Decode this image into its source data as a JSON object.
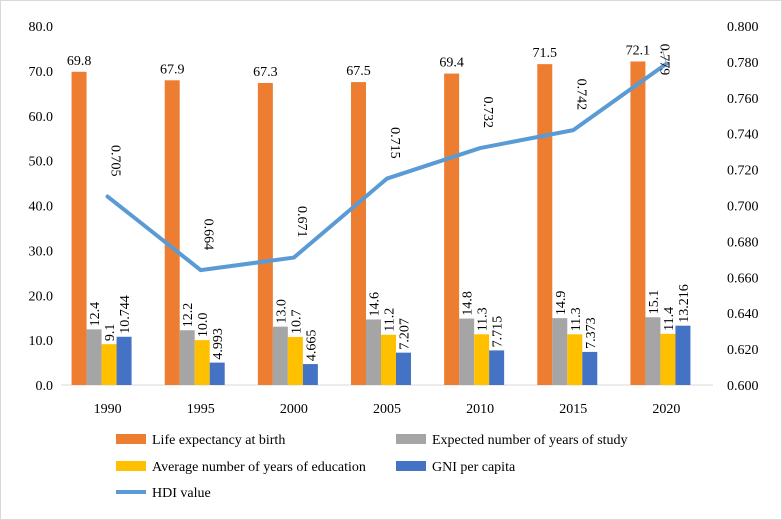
{
  "chart_data": {
    "type": "bar",
    "categories": [
      "1990",
      "1995",
      "2000",
      "2005",
      "2010",
      "2015",
      "2020"
    ],
    "series": [
      {
        "name": "Life expectancy at birth",
        "color": "#ED7D31",
        "axis": "left",
        "values": [
          69.8,
          67.9,
          67.3,
          67.5,
          69.4,
          71.5,
          72.1
        ],
        "labels": [
          "69.8",
          "67.9",
          "67.3",
          "67.5",
          "69.4",
          "71.5",
          "72.1"
        ]
      },
      {
        "name": "Expected number of years of study",
        "color": "#A5A5A5",
        "axis": "left",
        "values": [
          12.4,
          12.2,
          13.0,
          14.6,
          14.8,
          14.9,
          15.1
        ],
        "labels": [
          "12.4",
          "12.2",
          "13.0",
          "14.6",
          "14.8",
          "14.9",
          "15.1"
        ]
      },
      {
        "name": "Average number of years of education",
        "color": "#FFC000",
        "axis": "left",
        "values": [
          9.1,
          10.0,
          10.7,
          11.2,
          11.3,
          11.3,
          11.4
        ],
        "labels": [
          "9.1",
          "10.0",
          "10.7",
          "11.2",
          "11.3",
          "11.3",
          "11.4"
        ]
      },
      {
        "name": "GNI per capita",
        "color": "#4472C4",
        "axis": "left",
        "values": [
          10.744,
          4.993,
          4.665,
          7.207,
          7.715,
          7.373,
          13.216
        ],
        "labels": [
          "10.744",
          "4.993",
          "4.665",
          "7.207",
          "7.715",
          "7.373",
          "13.216"
        ]
      }
    ],
    "line_series": {
      "name": "HDI value",
      "color": "#5B9BD5",
      "axis": "right",
      "values": [
        0.705,
        0.664,
        0.671,
        0.715,
        0.732,
        0.742,
        0.779
      ],
      "labels": [
        "0.705",
        "0.664",
        "0.671",
        "0.715",
        "0.732",
        "0.742",
        "0.779"
      ]
    },
    "y_left": {
      "min": 0,
      "max": 80,
      "ticks": [
        "0.0",
        "10.0",
        "20.0",
        "30.0",
        "40.0",
        "50.0",
        "60.0",
        "70.0",
        "80.0"
      ]
    },
    "y_right": {
      "min": 0.6,
      "max": 0.8,
      "ticks": [
        "0.600",
        "0.620",
        "0.640",
        "0.660",
        "0.680",
        "0.700",
        "0.720",
        "0.740",
        "0.760",
        "0.780",
        "0.800"
      ]
    },
    "grid": false,
    "legend": "bottom"
  }
}
